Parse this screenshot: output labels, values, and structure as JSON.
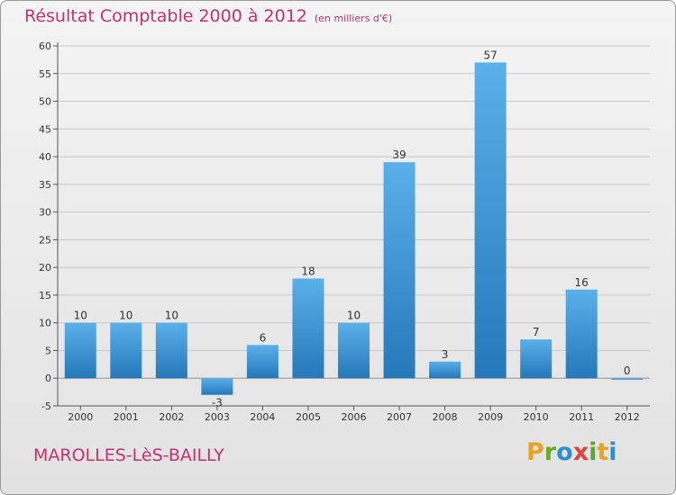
{
  "title": "Résultat Comptable 2000 à 2012",
  "subtitle": "(en milliers d'€)",
  "commune": "MAROLLES-LèS-BAILLY",
  "logo": {
    "letters": [
      "P",
      "r",
      "o",
      "x",
      "i",
      "t",
      "i"
    ],
    "colors": [
      "#e8a21c",
      "#6aab2a",
      "#2a8fd6",
      "#e44040",
      "#5aaa2a",
      "#e8a21c",
      "#2a8fd6"
    ]
  },
  "colors": {
    "bar_top": "#5ab0ea",
    "bar_bottom": "#2578b9",
    "title": "#c5316f",
    "grid": "#c8c8c8"
  },
  "chart_data": {
    "type": "bar",
    "title": "Résultat Comptable 2000 à 2012",
    "subtitle": "(en milliers d'€)",
    "xlabel": "",
    "ylabel": "",
    "categories": [
      "2000",
      "2001",
      "2002",
      "2003",
      "2004",
      "2005",
      "2006",
      "2007",
      "2008",
      "2009",
      "2010",
      "2011",
      "2012"
    ],
    "values": [
      10,
      10,
      10,
      -3,
      6,
      18,
      10,
      39,
      3,
      57,
      7,
      16,
      0
    ],
    "ylim": [
      -5,
      60
    ],
    "yticks": [
      -5,
      0,
      5,
      10,
      15,
      20,
      25,
      30,
      35,
      40,
      45,
      50,
      55,
      60
    ],
    "grid": true
  }
}
